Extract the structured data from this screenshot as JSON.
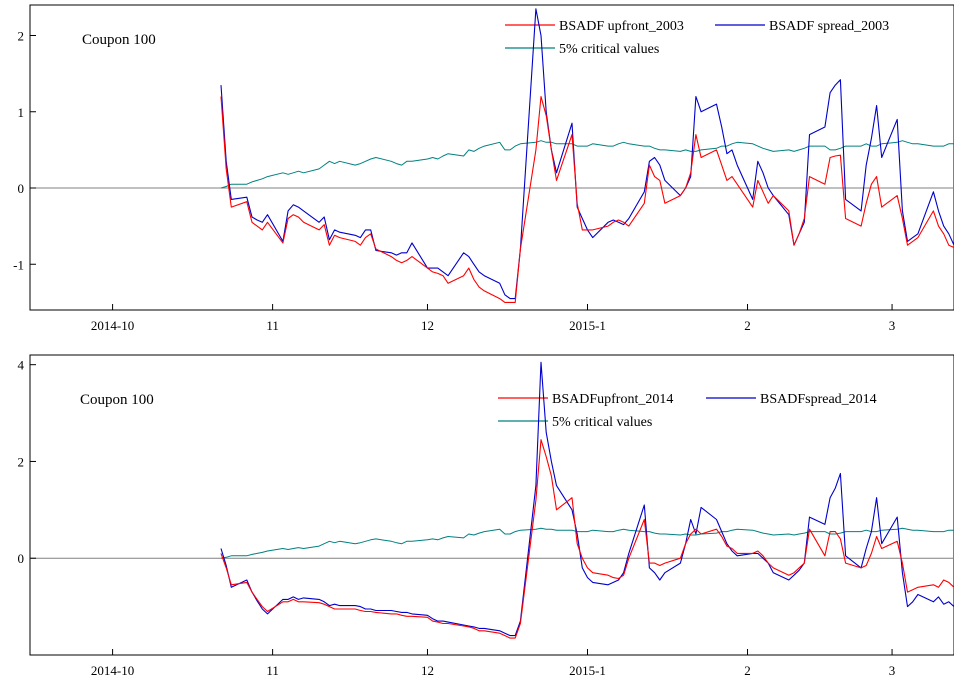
{
  "chart_data": [
    {
      "type": "line",
      "annotation": "Coupon 100",
      "x_start": "2014-10-22",
      "x_tick_labels": [
        "2014-10",
        "11",
        "12",
        "2015-1",
        "2",
        "3"
      ],
      "x_tick_dates": [
        "2014-10-01",
        "2014-11-01",
        "2014-12-01",
        "2015-01-01",
        "2015-02-01",
        "2015-03-01"
      ],
      "xlim": [
        "2014-09-15",
        "2015-03-13"
      ],
      "ylim": [
        -1.6,
        2.4
      ],
      "y_ticks": [
        -1,
        0,
        1,
        2
      ],
      "y_tick_labels": [
        "-1",
        "0",
        "1",
        "2"
      ],
      "zero_line": true,
      "grid": false,
      "legend_position": "top-right",
      "series": [
        {
          "name": "BSADF upfront_2003",
          "color": "#ff0000",
          "values": [
            1.2,
            0.25,
            -0.25,
            -0.18,
            -0.45,
            -0.5,
            -0.55,
            -0.45,
            -0.72,
            -0.4,
            -0.35,
            -0.38,
            -0.45,
            -0.55,
            -0.48,
            -0.75,
            -0.62,
            -0.65,
            -0.7,
            -0.75,
            -0.65,
            -0.6,
            -0.8,
            -0.9,
            -0.95,
            -0.98,
            -0.95,
            -0.9,
            -1.05,
            -1.1,
            -1.12,
            -1.15,
            -1.25,
            -1.15,
            -1.05,
            -1.2,
            -1.3,
            -1.35,
            -1.45,
            -1.5,
            -1.5,
            -1.5,
            -0.8,
            0.5,
            1.2,
            0.95,
            0.5,
            0.1,
            0.7,
            -0.2,
            -0.55,
            -0.55,
            -0.55,
            -0.5,
            -0.45,
            -0.42,
            -0.45,
            -0.5,
            -0.2,
            0.3,
            0.15,
            0.1,
            -0.2,
            -0.1,
            0.0,
            0.2,
            0.7,
            0.4,
            0.5,
            0.3,
            0.1,
            0.15,
            0.05,
            -0.25,
            0.1,
            -0.05,
            -0.2,
            -0.1,
            -0.3,
            -0.75,
            -0.6,
            -0.4,
            0.15,
            0.05,
            0.4,
            0.42,
            0.43,
            -0.4,
            -0.5,
            -0.2,
            0.05,
            0.15,
            -0.25,
            -0.1,
            -0.4,
            -0.75,
            -0.7,
            -0.65,
            -0.3,
            -0.5,
            -0.6,
            -0.75,
            -0.78,
            -0.9,
            -1.0,
            -1.0,
            -0.98,
            -0.98,
            -1.05,
            -1.05,
            -1.15,
            -1.1,
            -1.05,
            -1.0,
            -0.95,
            -0.88,
            -0.92
          ],
          "stroke_width": 1.1
        },
        {
          "name": "BSADF spread_2003",
          "color": "#0000cc",
          "values": [
            1.35,
            0.35,
            -0.15,
            -0.12,
            -0.38,
            -0.42,
            -0.45,
            -0.35,
            -0.7,
            -0.3,
            -0.22,
            -0.25,
            -0.3,
            -0.45,
            -0.38,
            -0.68,
            -0.55,
            -0.58,
            -0.62,
            -0.65,
            -0.55,
            -0.55,
            -0.82,
            -0.85,
            -0.88,
            -0.85,
            -0.85,
            -0.72,
            -1.05,
            -1.05,
            -1.05,
            -1.1,
            -1.15,
            -0.85,
            -0.9,
            -1.0,
            -1.1,
            -1.15,
            -1.25,
            -1.4,
            -1.45,
            -1.45,
            -0.8,
            2.35,
            2.0,
            1.0,
            0.5,
            0.2,
            0.85,
            -0.25,
            -0.4,
            -0.55,
            -0.65,
            -0.45,
            -0.42,
            -0.45,
            -0.48,
            -0.4,
            -0.05,
            0.35,
            0.4,
            0.3,
            0.1,
            -0.1,
            0.0,
            0.15,
            1.2,
            1.0,
            1.1,
            0.8,
            0.45,
            0.5,
            0.3,
            -0.15,
            0.35,
            0.2,
            0.0,
            -0.1,
            -0.35,
            -0.75,
            -0.6,
            -0.45,
            0.7,
            0.8,
            1.25,
            1.35,
            1.42,
            -0.15,
            -0.3,
            0.3,
            0.65,
            1.08,
            0.4,
            0.9,
            -0.3,
            -0.7,
            -0.65,
            -0.6,
            -0.05,
            -0.3,
            -0.5,
            -0.6,
            -0.75,
            -0.85,
            -1.1,
            -1.1,
            -0.98,
            -0.98,
            -1.15,
            -1.0,
            -1.15,
            -1.1,
            -1.05,
            -1.05,
            -0.9,
            -0.78,
            -0.82
          ],
          "stroke_width": 1.1
        },
        {
          "name": "5% critical values",
          "color": "#008080",
          "values": [
            0.0,
            0.02,
            0.05,
            0.05,
            0.08,
            0.1,
            0.12,
            0.15,
            0.2,
            0.18,
            0.2,
            0.22,
            0.2,
            0.25,
            0.3,
            0.35,
            0.32,
            0.35,
            0.3,
            0.32,
            0.35,
            0.38,
            0.4,
            0.35,
            0.32,
            0.3,
            0.35,
            0.35,
            0.38,
            0.4,
            0.38,
            0.42,
            0.45,
            0.42,
            0.5,
            0.48,
            0.52,
            0.55,
            0.6,
            0.5,
            0.5,
            0.55,
            0.58,
            0.6,
            0.62,
            0.6,
            0.6,
            0.58,
            0.58,
            0.55,
            0.55,
            0.55,
            0.58,
            0.55,
            0.55,
            0.58,
            0.6,
            0.58,
            0.55,
            0.55,
            0.52,
            0.5,
            0.5,
            0.48,
            0.5,
            0.48,
            0.48,
            0.5,
            0.52,
            0.55,
            0.55,
            0.58,
            0.6,
            0.58,
            0.55,
            0.52,
            0.5,
            0.48,
            0.5,
            0.48,
            0.5,
            0.52,
            0.55,
            0.55,
            0.5,
            0.5,
            0.52,
            0.55,
            0.55,
            0.58,
            0.55,
            0.55,
            0.58,
            0.6,
            0.62,
            0.6,
            0.58,
            0.58,
            0.55,
            0.55,
            0.55,
            0.58,
            0.58,
            0.58,
            0.6,
            0.6,
            0.62,
            0.6,
            0.62,
            0.62,
            0.65,
            0.65,
            0.68,
            0.68,
            0.65,
            0.62,
            0.6
          ],
          "stroke_width": 1.0
        }
      ]
    },
    {
      "type": "line",
      "annotation": "Coupon 100",
      "x_start": "2014-10-22",
      "x_tick_labels": [
        "2014-10",
        "11",
        "12",
        "2015-1",
        "2",
        "3"
      ],
      "x_tick_dates": [
        "2014-10-01",
        "2014-11-01",
        "2014-12-01",
        "2015-01-01",
        "2015-02-01",
        "2015-03-01"
      ],
      "xlim": [
        "2014-09-15",
        "2015-03-13"
      ],
      "ylim": [
        -2.0,
        4.2
      ],
      "y_ticks": [
        0,
        2,
        4
      ],
      "y_tick_labels": [
        "0",
        "2",
        "4"
      ],
      "zero_line": true,
      "grid": false,
      "legend_position": "top-right",
      "series": [
        {
          "name": "BSADFupfront_2014",
          "color": "#ff0000",
          "values": [
            0.1,
            -0.2,
            -0.55,
            -0.5,
            -0.7,
            -0.85,
            -1.0,
            -1.1,
            -0.9,
            -0.9,
            -0.85,
            -0.9,
            -0.9,
            -0.92,
            -0.95,
            -1.0,
            -1.05,
            -1.05,
            -1.05,
            -1.08,
            -1.1,
            -1.1,
            -1.12,
            -1.15,
            -1.15,
            -1.18,
            -1.2,
            -1.2,
            -1.22,
            -1.3,
            -1.32,
            -1.35,
            -1.35,
            -1.4,
            -1.42,
            -1.45,
            -1.5,
            -1.5,
            -1.55,
            -1.6,
            -1.65,
            -1.65,
            -1.35,
            1.2,
            2.45,
            2.1,
            1.7,
            1.0,
            1.25,
            0.3,
            0.0,
            -0.2,
            -0.3,
            -0.35,
            -0.4,
            -0.42,
            -0.35,
            0.0,
            0.8,
            -0.1,
            -0.1,
            -0.15,
            -0.1,
            0.0,
            0.3,
            0.5,
            0.6,
            0.5,
            0.6,
            0.45,
            0.25,
            0.2,
            0.1,
            0.1,
            0.15,
            0.05,
            -0.1,
            -0.2,
            -0.35,
            -0.3,
            -0.2,
            -0.1,
            0.6,
            0.05,
            0.55,
            0.55,
            0.4,
            -0.1,
            -0.2,
            -0.15,
            0.1,
            0.45,
            0.2,
            0.35,
            -0.1,
            -0.7,
            -0.65,
            -0.6,
            -0.55,
            -0.6,
            -0.45,
            -0.5,
            -0.6,
            -0.7,
            -0.85,
            -1.0,
            -0.95,
            -0.95,
            -0.95,
            -0.95,
            -1.0,
            -1.0,
            -0.95,
            -0.92,
            -0.85,
            -0.9,
            -0.95
          ],
          "stroke_width": 1.1
        },
        {
          "name": "BSADFspread_2014",
          "color": "#0000cc",
          "values": [
            0.2,
            -0.15,
            -0.6,
            -0.45,
            -0.7,
            -0.88,
            -1.05,
            -1.15,
            -0.85,
            -0.85,
            -0.8,
            -0.85,
            -0.82,
            -0.85,
            -0.9,
            -0.98,
            -0.95,
            -0.98,
            -0.98,
            -1.0,
            -1.05,
            -1.05,
            -1.08,
            -1.08,
            -1.1,
            -1.12,
            -1.12,
            -1.15,
            -1.18,
            -1.25,
            -1.3,
            -1.3,
            -1.32,
            -1.38,
            -1.4,
            -1.42,
            -1.45,
            -1.45,
            -1.5,
            -1.55,
            -1.6,
            -1.6,
            -1.3,
            1.5,
            4.05,
            2.6,
            2.0,
            1.5,
            1.0,
            0.5,
            -0.2,
            -0.4,
            -0.5,
            -0.55,
            -0.5,
            -0.45,
            -0.3,
            0.1,
            1.1,
            -0.2,
            -0.3,
            -0.45,
            -0.3,
            -0.1,
            0.3,
            0.8,
            0.5,
            1.05,
            0.8,
            0.55,
            0.3,
            0.15,
            0.05,
            0.1,
            0.1,
            0.0,
            -0.1,
            -0.3,
            -0.45,
            -0.35,
            -0.25,
            -0.1,
            0.85,
            0.7,
            1.25,
            1.45,
            1.75,
            0.05,
            -0.2,
            0.2,
            0.55,
            1.25,
            0.3,
            0.85,
            -0.3,
            -1.0,
            -0.9,
            -0.75,
            -0.9,
            -0.8,
            -0.95,
            -0.9,
            -1.0,
            -1.1,
            -1.2,
            -1.25,
            -1.15,
            -1.2,
            -1.15,
            -1.2,
            -1.22,
            -1.22,
            -1.2,
            -1.15,
            -1.1,
            -1.15,
            -1.2
          ],
          "stroke_width": 1.1
        },
        {
          "name": "5% critical values",
          "color": "#008080",
          "values": [
            0.0,
            0.02,
            0.05,
            0.05,
            0.08,
            0.1,
            0.12,
            0.15,
            0.2,
            0.18,
            0.2,
            0.22,
            0.2,
            0.25,
            0.3,
            0.35,
            0.32,
            0.35,
            0.3,
            0.32,
            0.35,
            0.38,
            0.4,
            0.35,
            0.32,
            0.3,
            0.35,
            0.35,
            0.38,
            0.4,
            0.38,
            0.42,
            0.45,
            0.42,
            0.5,
            0.48,
            0.52,
            0.55,
            0.6,
            0.5,
            0.5,
            0.55,
            0.58,
            0.6,
            0.62,
            0.6,
            0.6,
            0.58,
            0.58,
            0.55,
            0.55,
            0.55,
            0.58,
            0.55,
            0.55,
            0.58,
            0.6,
            0.58,
            0.55,
            0.55,
            0.52,
            0.5,
            0.5,
            0.48,
            0.5,
            0.48,
            0.48,
            0.5,
            0.52,
            0.55,
            0.55,
            0.58,
            0.6,
            0.58,
            0.55,
            0.52,
            0.5,
            0.48,
            0.5,
            0.48,
            0.5,
            0.52,
            0.55,
            0.55,
            0.5,
            0.5,
            0.52,
            0.55,
            0.55,
            0.58,
            0.55,
            0.55,
            0.58,
            0.6,
            0.62,
            0.6,
            0.58,
            0.58,
            0.55,
            0.55,
            0.55,
            0.58,
            0.58,
            0.58,
            0.6,
            0.6,
            0.62,
            0.6,
            0.62,
            0.62,
            0.65,
            0.65,
            0.68,
            0.68,
            0.65,
            0.62,
            0.6
          ],
          "stroke_width": 1.0
        }
      ]
    }
  ]
}
